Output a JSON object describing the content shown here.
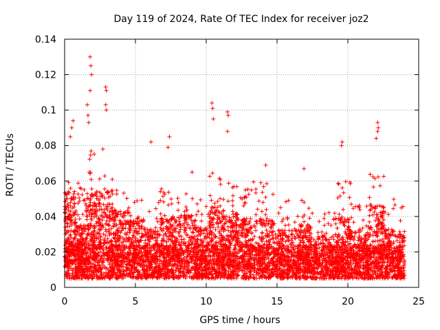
{
  "chart_data": {
    "type": "scatter",
    "title": "Day 119 of 2024, Rate Of TEC Index for receiver joz2",
    "xlabel": "GPS time / hours",
    "ylabel": "ROTI / TECUs",
    "xlim": [
      0,
      25
    ],
    "ylim": [
      0,
      0.14
    ],
    "xticks": [
      0,
      5,
      10,
      15,
      20,
      25
    ],
    "yticks": [
      0,
      0.02,
      0.04,
      0.06,
      0.08,
      0.1,
      0.12,
      0.14
    ],
    "xtick_labels": [
      "0",
      "5",
      "10",
      "15",
      "20",
      "25"
    ],
    "ytick_labels": [
      "0",
      "0.02",
      "0.04",
      "0.06",
      "0.08",
      "0.1",
      "0.12",
      "0.14"
    ],
    "grid": true,
    "marker": "+",
    "color": "#ff0000",
    "x_range_of_data": [
      0,
      24
    ],
    "notable_points": [
      {
        "x": 1.8,
        "y": 0.13
      },
      {
        "x": 1.85,
        "y": 0.125
      },
      {
        "x": 1.9,
        "y": 0.12
      },
      {
        "x": 1.8,
        "y": 0.111
      },
      {
        "x": 2.9,
        "y": 0.113
      },
      {
        "x": 2.95,
        "y": 0.111
      },
      {
        "x": 2.9,
        "y": 0.103
      },
      {
        "x": 2.95,
        "y": 0.1
      },
      {
        "x": 1.6,
        "y": 0.103
      },
      {
        "x": 1.65,
        "y": 0.097
      },
      {
        "x": 1.7,
        "y": 0.093
      },
      {
        "x": 0.6,
        "y": 0.094
      },
      {
        "x": 0.5,
        "y": 0.09
      },
      {
        "x": 0.4,
        "y": 0.085
      },
      {
        "x": 10.4,
        "y": 0.104
      },
      {
        "x": 10.45,
        "y": 0.101
      },
      {
        "x": 10.5,
        "y": 0.095
      },
      {
        "x": 11.5,
        "y": 0.099
      },
      {
        "x": 11.55,
        "y": 0.097
      },
      {
        "x": 11.5,
        "y": 0.088
      },
      {
        "x": 22.1,
        "y": 0.093
      },
      {
        "x": 22.15,
        "y": 0.09
      },
      {
        "x": 22.1,
        "y": 0.088
      },
      {
        "x": 22.0,
        "y": 0.084
      },
      {
        "x": 6.1,
        "y": 0.082
      },
      {
        "x": 7.4,
        "y": 0.085
      },
      {
        "x": 7.3,
        "y": 0.079
      },
      {
        "x": 19.6,
        "y": 0.082
      },
      {
        "x": 19.55,
        "y": 0.08
      },
      {
        "x": 2.7,
        "y": 0.078
      },
      {
        "x": 16.9,
        "y": 0.067
      },
      {
        "x": 14.2,
        "y": 0.069
      },
      {
        "x": 9.0,
        "y": 0.065
      }
    ],
    "clusters": [
      {
        "x": [
          0.0,
          0.8
        ],
        "base": 0.034,
        "spread": 0.02,
        "peak": 0.06
      },
      {
        "x": [
          0.8,
          1.5
        ],
        "base": 0.02,
        "spread": 0.015,
        "peak": 0.06
      },
      {
        "x": [
          1.5,
          2.3
        ],
        "base": 0.032,
        "spread": 0.022,
        "peak": 0.08
      },
      {
        "x": [
          2.3,
          3.4
        ],
        "base": 0.034,
        "spread": 0.02,
        "peak": 0.065
      },
      {
        "x": [
          3.4,
          4.5
        ],
        "base": 0.028,
        "spread": 0.016,
        "peak": 0.055
      },
      {
        "x": [
          4.5,
          5.6
        ],
        "base": 0.024,
        "spread": 0.014,
        "peak": 0.05
      },
      {
        "x": [
          5.6,
          6.8
        ],
        "base": 0.02,
        "spread": 0.014,
        "peak": 0.055
      },
      {
        "x": [
          6.8,
          7.8
        ],
        "base": 0.024,
        "spread": 0.016,
        "peak": 0.06
      },
      {
        "x": [
          7.8,
          9.2
        ],
        "base": 0.025,
        "spread": 0.016,
        "peak": 0.055
      },
      {
        "x": [
          9.2,
          10.2
        ],
        "base": 0.02,
        "spread": 0.014,
        "peak": 0.05
      },
      {
        "x": [
          10.2,
          11.2
        ],
        "base": 0.028,
        "spread": 0.018,
        "peak": 0.065
      },
      {
        "x": [
          11.2,
          12.3
        ],
        "base": 0.026,
        "spread": 0.016,
        "peak": 0.06
      },
      {
        "x": [
          12.3,
          13.5
        ],
        "base": 0.024,
        "spread": 0.015,
        "peak": 0.06
      },
      {
        "x": [
          13.5,
          15.0
        ],
        "base": 0.024,
        "spread": 0.015,
        "peak": 0.06
      },
      {
        "x": [
          15.0,
          16.5
        ],
        "base": 0.02,
        "spread": 0.013,
        "peak": 0.05
      },
      {
        "x": [
          16.5,
          17.5
        ],
        "base": 0.022,
        "spread": 0.014,
        "peak": 0.05
      },
      {
        "x": [
          17.5,
          19.0
        ],
        "base": 0.018,
        "spread": 0.012,
        "peak": 0.045
      },
      {
        "x": [
          19.0,
          20.2
        ],
        "base": 0.024,
        "spread": 0.015,
        "peak": 0.06
      },
      {
        "x": [
          20.2,
          21.5
        ],
        "base": 0.02,
        "spread": 0.013,
        "peak": 0.05
      },
      {
        "x": [
          21.5,
          22.6
        ],
        "base": 0.028,
        "spread": 0.018,
        "peak": 0.065
      },
      {
        "x": [
          22.6,
          24.0
        ],
        "base": 0.02,
        "spread": 0.013,
        "peak": 0.05
      }
    ],
    "floor": 0.005,
    "dense_band": [
      0.008,
      0.02
    ]
  }
}
